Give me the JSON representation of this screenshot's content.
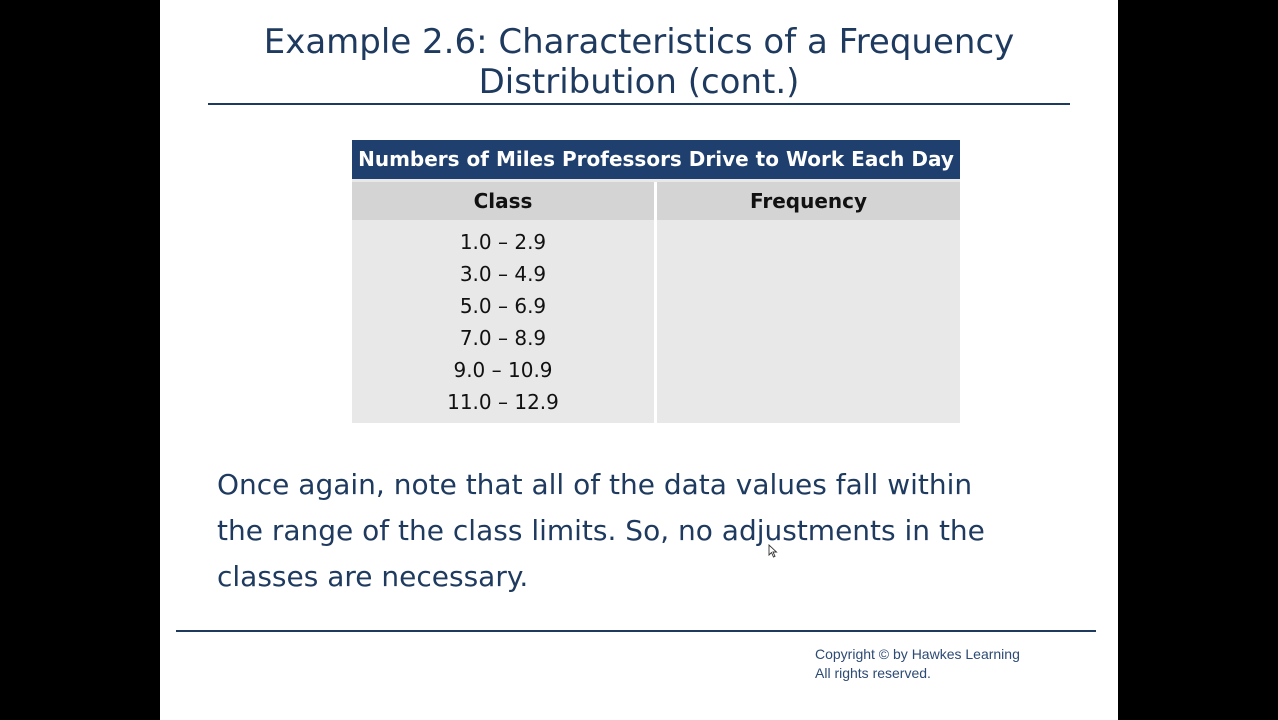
{
  "slide": {
    "title_line1": "Example 2.6: Characteristics of a Frequency",
    "title_line2": "Distribution (cont.)"
  },
  "table": {
    "caption": "Numbers of Miles Professors Drive to Work Each Day",
    "headers": {
      "class": "Class",
      "frequency": "Frequency"
    },
    "classes": [
      "1.0 – 2.9",
      "3.0 – 4.9",
      "5.0 – 6.9",
      "7.0 – 8.9",
      "9.0 – 10.9",
      "11.0 – 12.9"
    ]
  },
  "body": {
    "line1": "Once again, note that all of the data values fall within",
    "line2": "the range of the class limits. So, no adjustments in the",
    "line3": "classes are necessary."
  },
  "footer": {
    "copyright_line1": "Copyright © by Hawkes Learning",
    "copyright_line2": "All rights reserved."
  },
  "icons": {
    "cursor": "mouse-pointer-icon"
  }
}
